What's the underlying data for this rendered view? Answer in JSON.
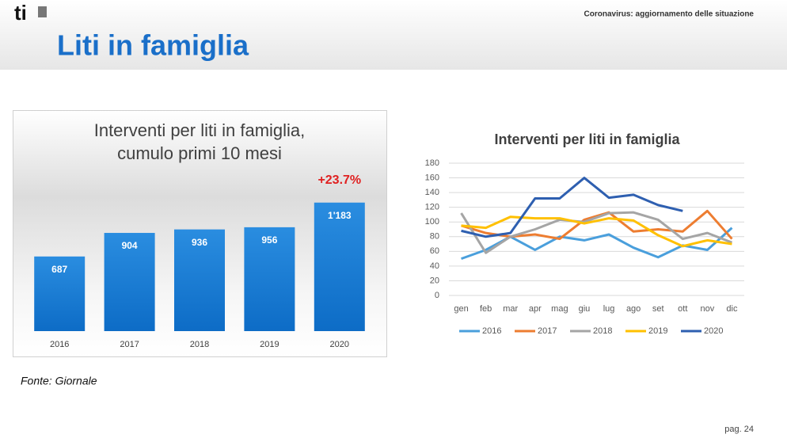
{
  "header": {
    "logo": "ti",
    "subtitle": "Coronavirus: aggiornamento delle situazione",
    "title": "Liti in famiglia"
  },
  "chart_data": [
    {
      "type": "bar",
      "title": [
        "Interventi per liti in famiglia,",
        "cumulo primi 10 mesi"
      ],
      "categories": [
        "2016",
        "2017",
        "2018",
        "2019",
        "2020"
      ],
      "values": [
        687,
        904,
        936,
        956,
        1183
      ],
      "value_labels": [
        "687",
        "904",
        "936",
        "956",
        "1'183"
      ],
      "color": "#1f7fd6",
      "ylim": [
        0,
        1400
      ],
      "annotation": "+23.7%"
    },
    {
      "type": "line",
      "title": "Interventi per liti in famiglia",
      "categories": [
        "gen",
        "feb",
        "mar",
        "apr",
        "mag",
        "giu",
        "lug",
        "ago",
        "set",
        "ott",
        "nov",
        "dic"
      ],
      "series": [
        {
          "name": "2016",
          "color": "#4a9fdc",
          "values": [
            50,
            62,
            80,
            62,
            80,
            75,
            83,
            65,
            52,
            68,
            62,
            92
          ]
        },
        {
          "name": "2017",
          "color": "#ed7d31",
          "values": [
            95,
            85,
            80,
            83,
            77,
            103,
            113,
            87,
            90,
            87,
            115,
            77
          ]
        },
        {
          "name": "2018",
          "color": "#a5a5a5",
          "values": [
            112,
            58,
            80,
            90,
            103,
            100,
            112,
            113,
            103,
            77,
            85,
            72
          ]
        },
        {
          "name": "2019",
          "color": "#ffc000",
          "values": [
            95,
            92,
            107,
            105,
            105,
            98,
            105,
            102,
            82,
            67,
            75,
            70
          ]
        },
        {
          "name": "2020",
          "color": "#2e5fb0",
          "values": [
            88,
            80,
            85,
            132,
            132,
            160,
            133,
            137,
            123,
            115,
            null,
            null
          ]
        }
      ],
      "ylim": [
        0,
        180
      ],
      "yticks": [
        0,
        20,
        40,
        60,
        80,
        100,
        120,
        140,
        160,
        180
      ],
      "grid": true,
      "legend": "bottom"
    }
  ],
  "source": "Fonte: Giornale",
  "page": "pag. 24"
}
